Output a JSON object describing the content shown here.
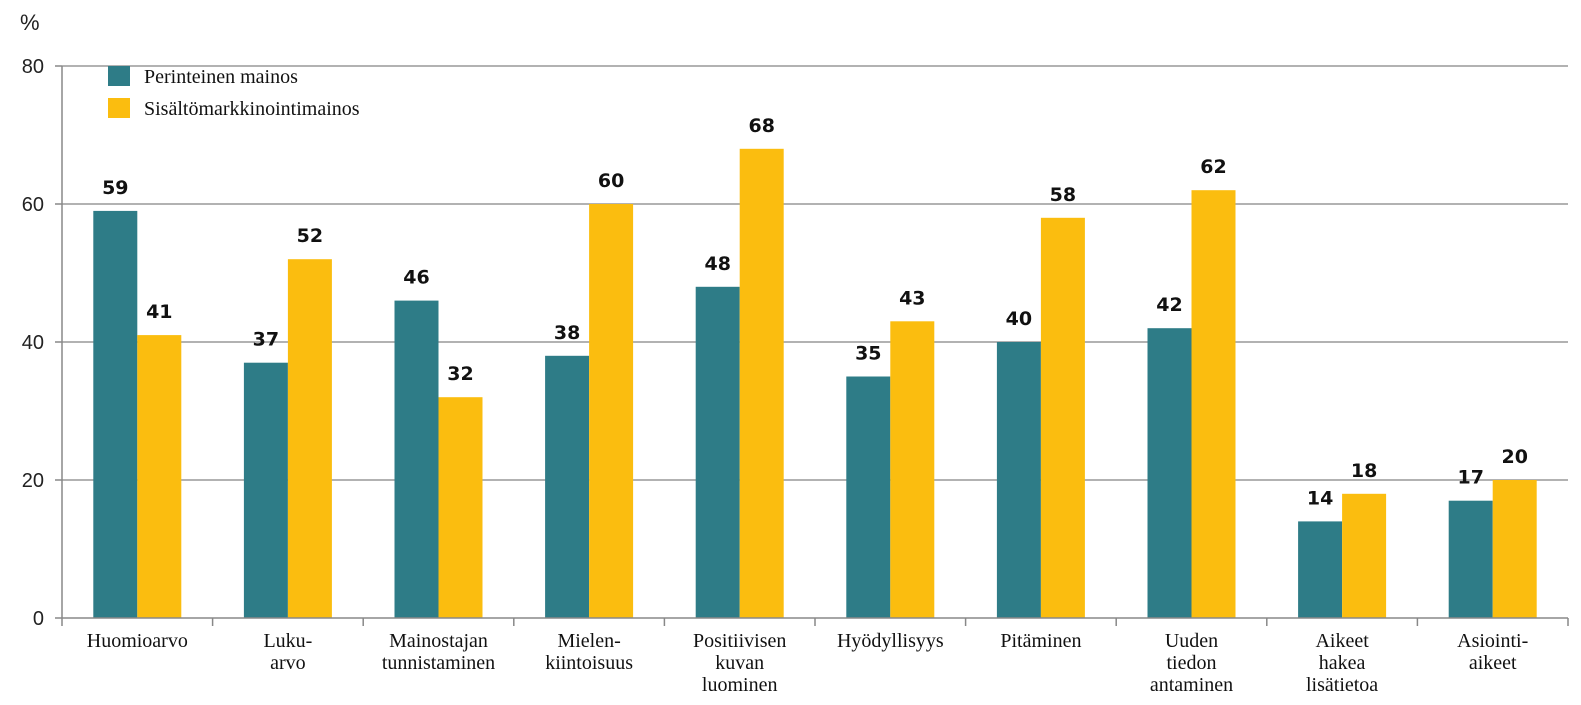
{
  "chart_data": {
    "type": "bar",
    "unit_label": "%",
    "ylim": [
      0,
      80
    ],
    "yticks": [
      0,
      20,
      40,
      60,
      80
    ],
    "grid": true,
    "legend_position": "top-left",
    "categories": [
      [
        "Huomioarvo"
      ],
      [
        "Luku-",
        "arvo"
      ],
      [
        "Mainostajan",
        "tunnistaminen"
      ],
      [
        "Mielen-",
        "kiintoisuus"
      ],
      [
        "Positiivisen",
        "kuvan",
        "luominen"
      ],
      [
        "Hyödyllisyys"
      ],
      [
        "Pitäminen"
      ],
      [
        "Uuden",
        "tiedon",
        "antaminen"
      ],
      [
        "Aikeet",
        "hakea",
        "lisätietoa"
      ],
      [
        "Asiointi-",
        "aikeet"
      ]
    ],
    "series": [
      {
        "name": "Perinteinen mainos",
        "color": "#2e7c87",
        "values": [
          59,
          37,
          46,
          38,
          48,
          35,
          40,
          42,
          14,
          17
        ]
      },
      {
        "name": "Sisältömarkkinointimainos",
        "color": "#fbbd0f",
        "values": [
          41,
          52,
          32,
          60,
          68,
          43,
          58,
          62,
          18,
          20
        ]
      }
    ]
  }
}
